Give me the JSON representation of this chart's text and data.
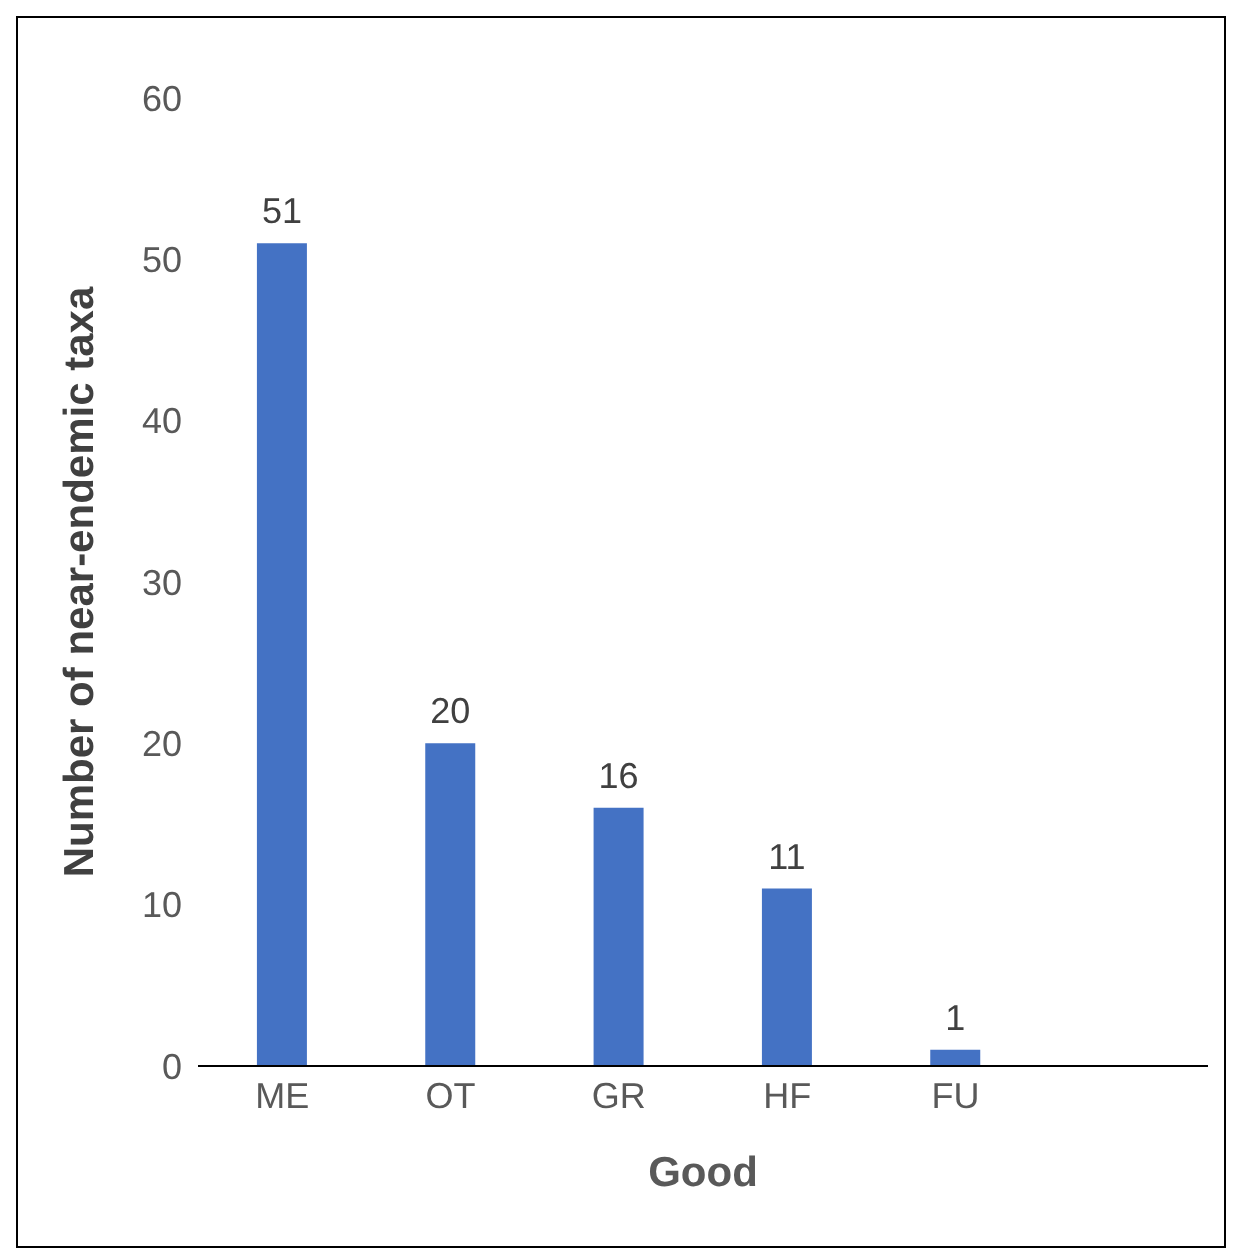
{
  "chart_data": {
    "type": "bar",
    "xlabel": "Good",
    "ylabel": "Number of near-endemic taxa",
    "categories": [
      "ME",
      "OT",
      "GR",
      "HF",
      "FU",
      null
    ],
    "values": [
      51,
      20,
      16,
      11,
      1,
      null
    ],
    "color": "#4472c4",
    "ylim": [
      0,
      60
    ],
    "yticks": [
      0,
      10,
      20,
      30,
      40,
      50,
      60
    ],
    "data_labels": true
  }
}
